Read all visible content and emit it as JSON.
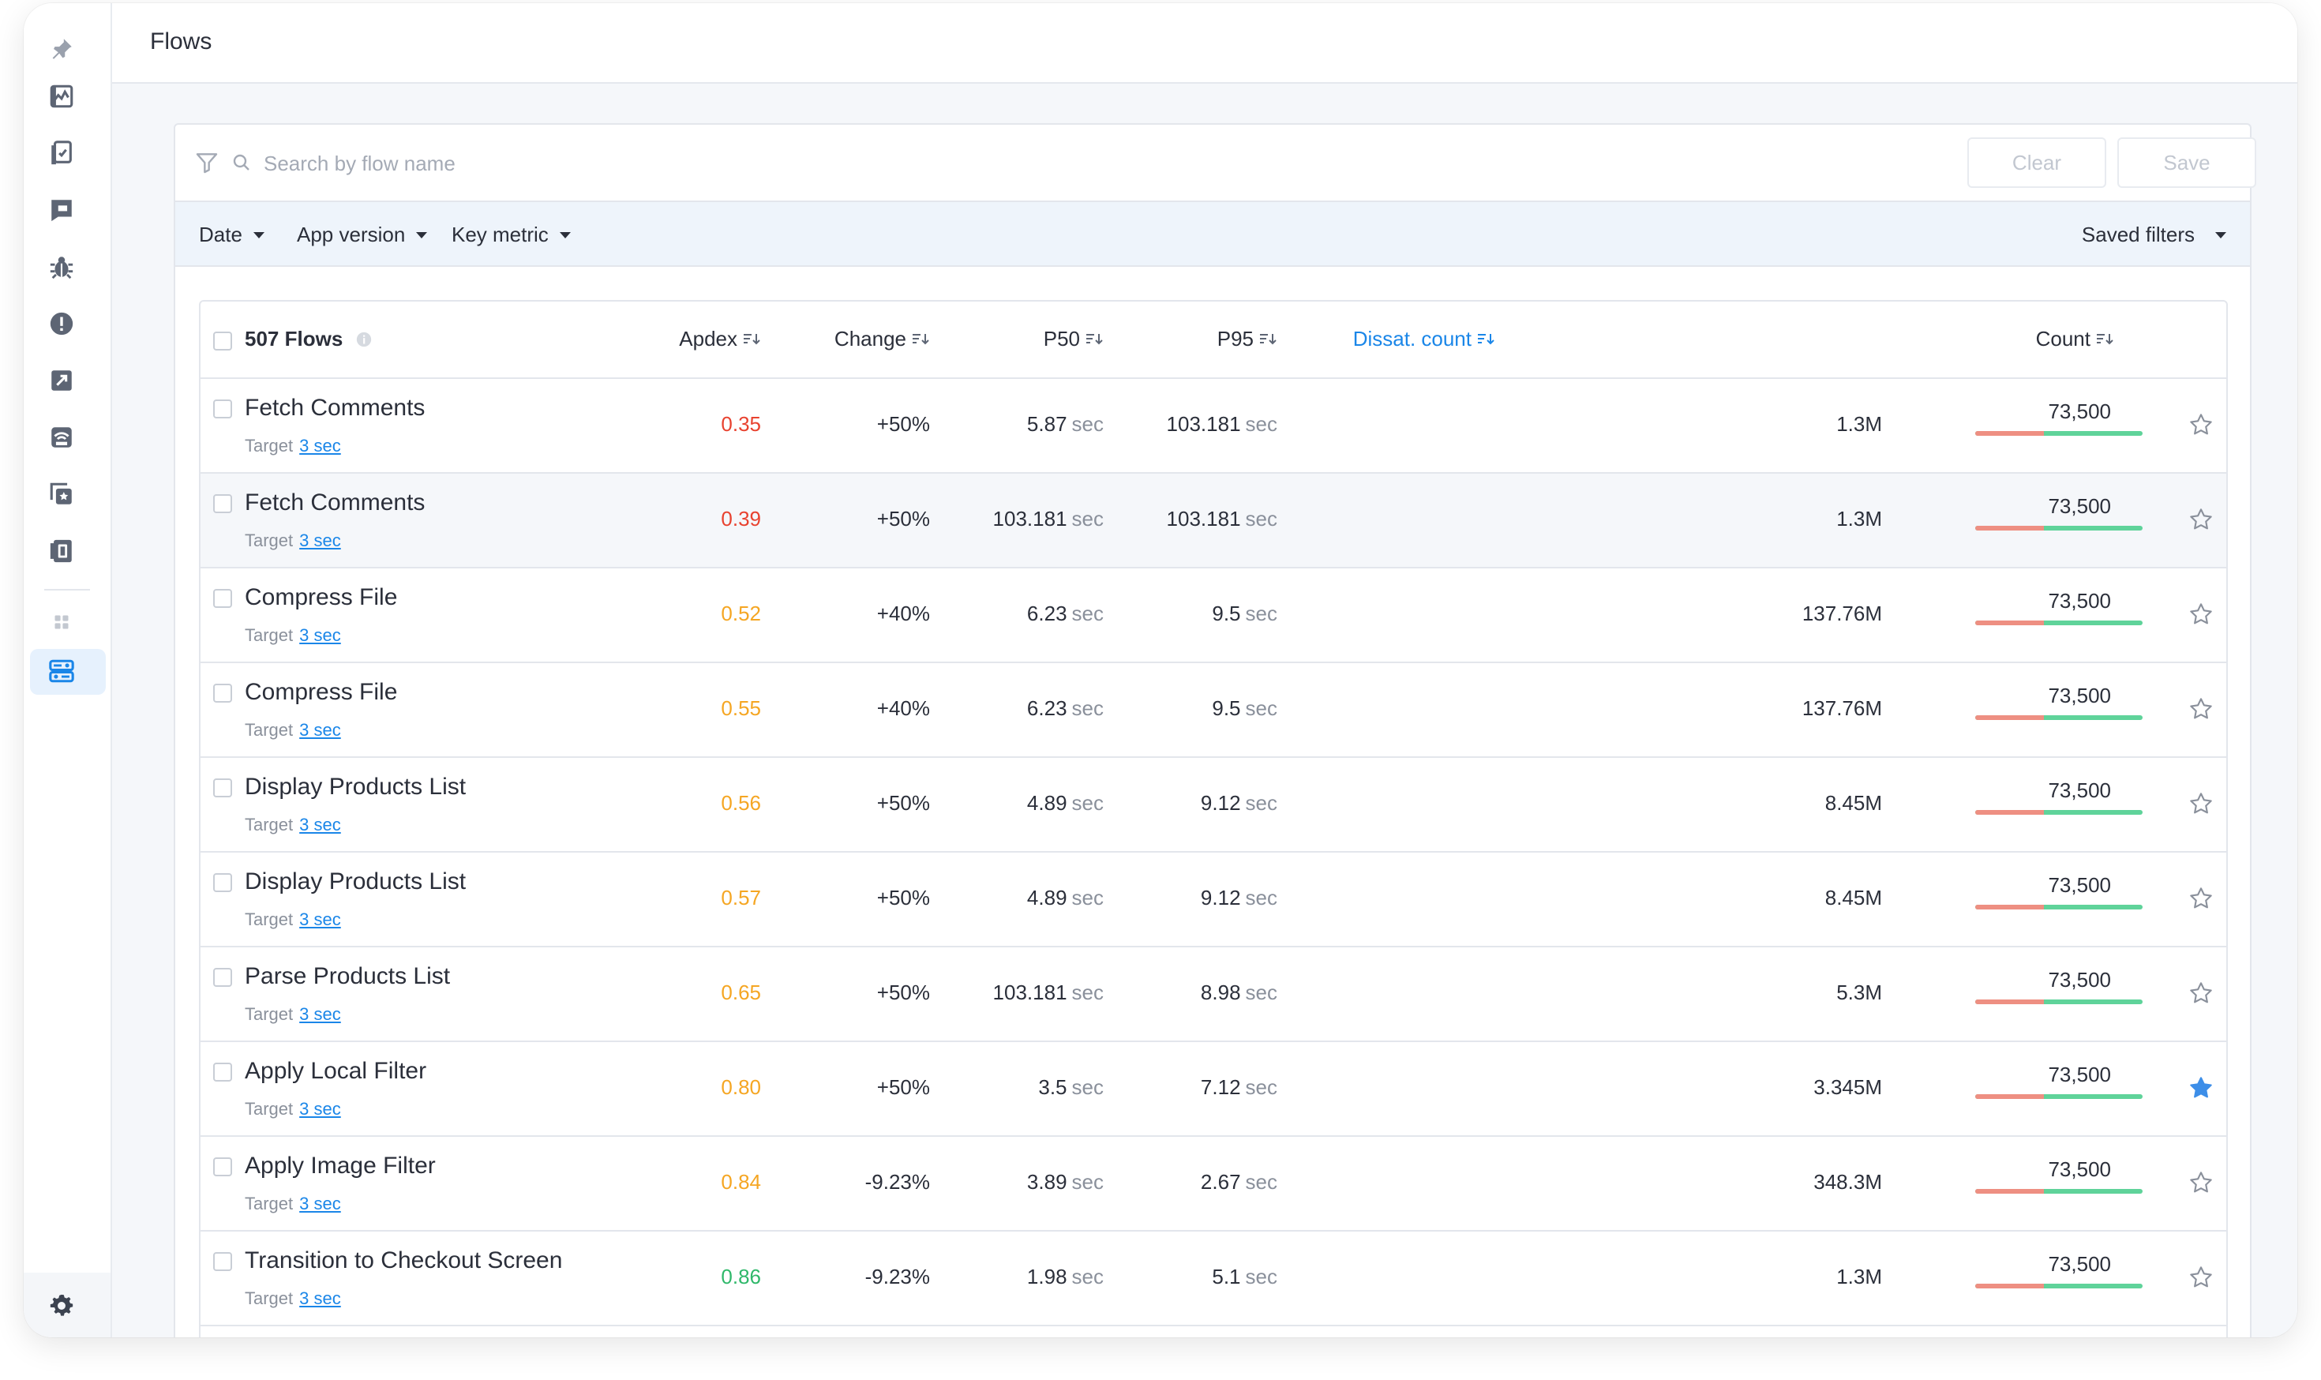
{
  "page": {
    "title": "Flows"
  },
  "search": {
    "placeholder": "Search by flow name"
  },
  "buttons": {
    "clear": "Clear",
    "save": "Save"
  },
  "filters": {
    "date": "Date",
    "app_version": "App version",
    "key_metric": "Key metric",
    "saved": "Saved filters"
  },
  "table": {
    "title": "507 Flows",
    "columns": {
      "apdex": "Apdex",
      "change": "Change",
      "p50": "P50",
      "p95": "P95",
      "dissat": "Dissat. count",
      "count": "Count"
    },
    "unit": "sec",
    "target_label": "Target",
    "rows": [
      {
        "name": "Fetch Comments",
        "target": "3 sec",
        "apdex": "0.35",
        "apdex_color": "#e8422f",
        "change": "+50%",
        "p50": "5.87",
        "p95": "103.181",
        "dissat": "1.3M",
        "count": "73,500",
        "starred": false
      },
      {
        "name": "Fetch Comments",
        "target": "3 sec",
        "apdex": "0.39",
        "apdex_color": "#e8422f",
        "change": "+50%",
        "p50": "103.181",
        "p95": "103.181",
        "dissat": "1.3M",
        "count": "73,500",
        "starred": false
      },
      {
        "name": "Compress File",
        "target": "3 sec",
        "apdex": "0.52",
        "apdex_color": "#f5a623",
        "change": "+40%",
        "p50": "6.23",
        "p95": "9.5",
        "dissat": "137.76M",
        "count": "73,500",
        "starred": false
      },
      {
        "name": "Compress File",
        "target": "3 sec",
        "apdex": "0.55",
        "apdex_color": "#f5a623",
        "change": "+40%",
        "p50": "6.23",
        "p95": "9.5",
        "dissat": "137.76M",
        "count": "73,500",
        "starred": false
      },
      {
        "name": "Display Products List",
        "target": "3 sec",
        "apdex": "0.56",
        "apdex_color": "#f5a623",
        "change": "+50%",
        "p50": "4.89",
        "p95": "9.12",
        "dissat": "8.45M",
        "count": "73,500",
        "starred": false
      },
      {
        "name": "Display Products List",
        "target": "3 sec",
        "apdex": "0.57",
        "apdex_color": "#f5a623",
        "change": "+50%",
        "p50": "4.89",
        "p95": "9.12",
        "dissat": "8.45M",
        "count": "73,500",
        "starred": false
      },
      {
        "name": "Parse Products List",
        "target": "3 sec",
        "apdex": "0.65",
        "apdex_color": "#f5a623",
        "change": "+50%",
        "p50": "103.181",
        "p95": "8.98",
        "dissat": "5.3M",
        "count": "73,500",
        "starred": false
      },
      {
        "name": "Apply Local Filter",
        "target": "3 sec",
        "apdex": "0.80",
        "apdex_color": "#f5a623",
        "change": "+50%",
        "p50": "3.5",
        "p95": "7.12",
        "dissat": "3.345M",
        "count": "73,500",
        "starred": true
      },
      {
        "name": "Apply Image Filter",
        "target": "3 sec",
        "apdex": "0.84",
        "apdex_color": "#f5a623",
        "change": "-9.23%",
        "p50": "3.89",
        "p95": "2.67",
        "dissat": "348.3M",
        "count": "73,500",
        "starred": false
      },
      {
        "name": "Transition to Checkout Screen",
        "target": "3 sec",
        "apdex": "0.86",
        "apdex_color": "#2fb86a",
        "change": "-9.23%",
        "p50": "1.98",
        "p95": "5.1",
        "dissat": "1.3M",
        "count": "73,500",
        "starred": false
      }
    ],
    "count_bar": {
      "dissatisfied_fraction": 0.41,
      "colors": {
        "dissatisfied": "#ee8f82",
        "satisfied": "#5fd39a"
      }
    }
  },
  "sidebar": {
    "icons": [
      "pin-icon",
      "dashboard-icon",
      "app-icon",
      "flag-icon",
      "bug-icon",
      "alert-icon",
      "launch-icon",
      "network-icon",
      "screens-icon",
      "traces-icon",
      "apps-grid-icon",
      "flows-icon",
      "settings-icon"
    ],
    "active": "flows-icon"
  },
  "colors": {
    "accent": "#1a86e8",
    "star_active": "#3d8ee8"
  }
}
